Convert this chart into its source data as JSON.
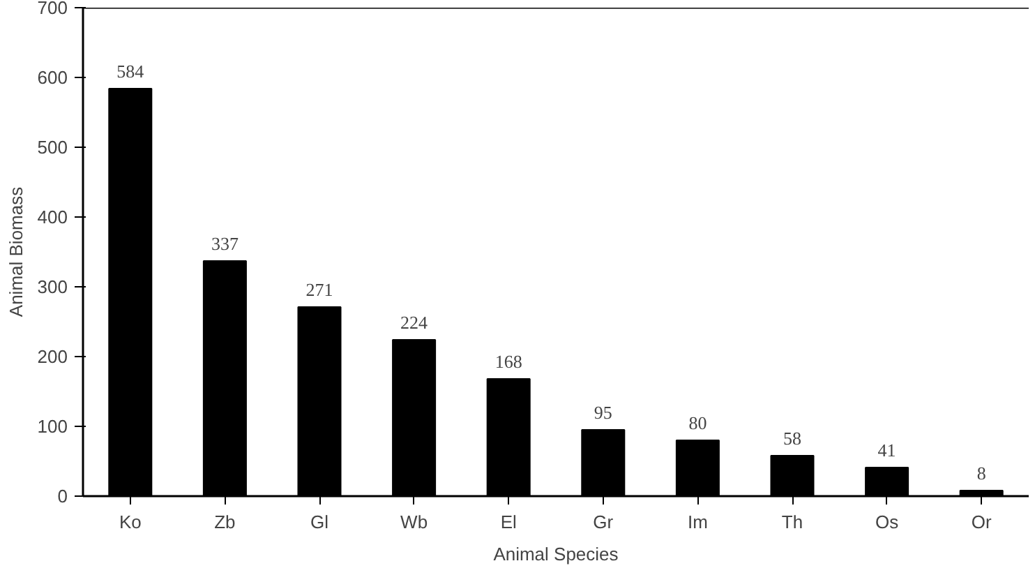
{
  "chart_data": {
    "type": "bar",
    "xlabel": "Animal Species",
    "ylabel": "Animal Biomass",
    "categories": [
      "Ko",
      "Zb",
      "Gl",
      "Wb",
      "El",
      "Gr",
      "Im",
      "Th",
      "Os",
      "Or"
    ],
    "values": [
      584,
      337,
      271,
      224,
      168,
      95,
      80,
      58,
      41,
      8
    ],
    "color": "#000000",
    "ylim": [
      0,
      700
    ],
    "yticks": [
      0,
      100,
      200,
      300,
      400,
      500,
      600,
      700
    ],
    "grid": false,
    "data_labels": true
  }
}
